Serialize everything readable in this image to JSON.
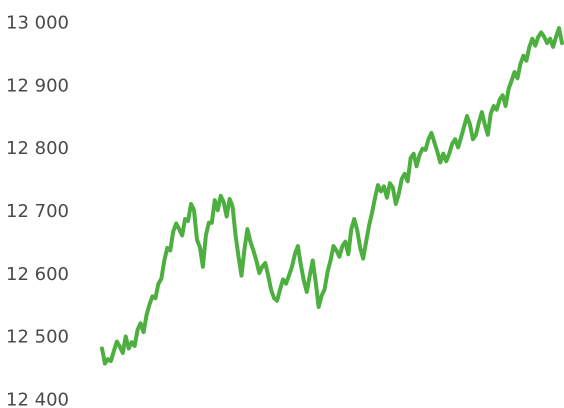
{
  "chart_data": {
    "type": "line",
    "ylim": [
      12400,
      13000
    ],
    "yticks": [
      12400,
      12500,
      12600,
      12700,
      12800,
      12900,
      13000
    ],
    "ytick_labels": [
      "12 400",
      "12 500",
      "12 600",
      "12 700",
      "12 800",
      "12 900",
      "13 000"
    ],
    "grid": false,
    "legend": "none",
    "series": [
      {
        "color": "#4caf3f",
        "values": [
          12482,
          12458,
          12465,
          12462,
          12478,
          12493,
          12485,
          12475,
          12501,
          12482,
          12492,
          12486,
          12512,
          12522,
          12508,
          12535,
          12552,
          12565,
          12562,
          12585,
          12593,
          12622,
          12642,
          12638,
          12668,
          12681,
          12672,
          12662,
          12688,
          12685,
          12712,
          12702,
          12655,
          12643,
          12612,
          12662,
          12682,
          12682,
          12718,
          12702,
          12725,
          12715,
          12692,
          12720,
          12708,
          12662,
          12628,
          12598,
          12640,
          12672,
          12652,
          12638,
          12622,
          12602,
          12612,
          12618,
          12598,
          12575,
          12562,
          12558,
          12576,
          12592,
          12585,
          12598,
          12612,
          12632,
          12645,
          12615,
          12590,
          12572,
          12598,
          12622,
          12588,
          12548,
          12566,
          12576,
          12604,
          12622,
          12645,
          12638,
          12628,
          12645,
          12652,
          12632,
          12672,
          12688,
          12670,
          12642,
          12625,
          12652,
          12678,
          12698,
          12722,
          12742,
          12732,
          12740,
          12722,
          12745,
          12738,
          12712,
          12728,
          12752,
          12760,
          12748,
          12785,
          12792,
          12772,
          12790,
          12800,
          12798,
          12815,
          12825,
          12810,
          12795,
          12778,
          12792,
          12780,
          12792,
          12808,
          12815,
          12802,
          12818,
          12835,
          12852,
          12838,
          12815,
          12822,
          12842,
          12858,
          12838,
          12822,
          12856,
          12868,
          12862,
          12878,
          12885,
          12868,
          12895,
          12908,
          12922,
          12912,
          12935,
          12948,
          12940,
          12962,
          12975,
          12964,
          12978,
          12985,
          12978,
          12968,
          12975,
          12962,
          12978,
          12992,
          12968
        ]
      }
    ]
  }
}
